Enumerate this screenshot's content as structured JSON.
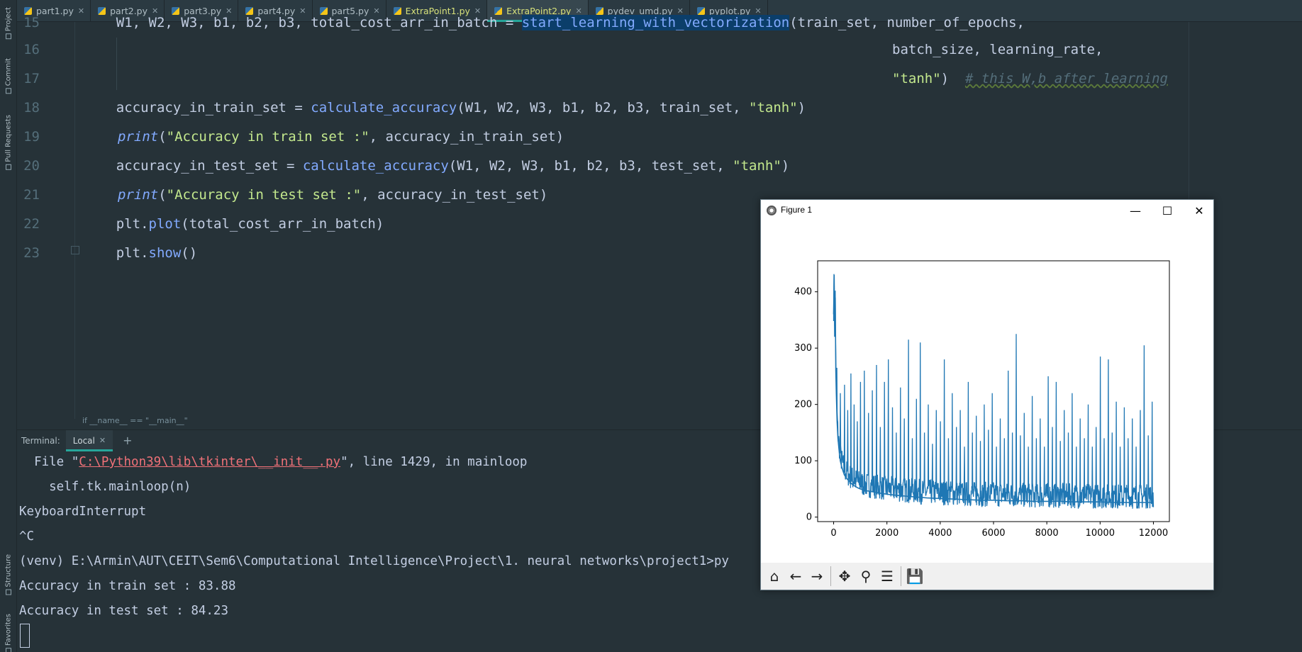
{
  "left_strip": {
    "project": "Project",
    "commit": "Commit",
    "pull_requests": "Pull Requests",
    "structure": "Structure",
    "favorites": "Favorites"
  },
  "tabs": [
    {
      "label": "part1.py",
      "modified": false,
      "active": false
    },
    {
      "label": "part2.py",
      "modified": false,
      "active": false
    },
    {
      "label": "part3.py",
      "modified": false,
      "active": false
    },
    {
      "label": "part4.py",
      "modified": false,
      "active": false
    },
    {
      "label": "part5.py",
      "modified": false,
      "active": false
    },
    {
      "label": "ExtraPoint1.py",
      "modified": true,
      "active": false
    },
    {
      "label": "ExtraPoint2.py",
      "modified": true,
      "active": true
    },
    {
      "label": "pydev_umd.py",
      "modified": false,
      "active": false
    },
    {
      "label": "pyplot.py",
      "modified": false,
      "active": false
    }
  ],
  "warning_count": "1",
  "editor": {
    "line_numbers": [
      "15",
      "16",
      "17",
      "18",
      "19",
      "20",
      "21",
      "22",
      "23"
    ],
    "line15": {
      "a": "    W1, W2, W3, b1, b2, b3, total_cost_arr_in_batch = ",
      "fn": "start_learning_with_vectorization",
      "b": "(train_set, number_of_epochs,"
    },
    "line16": "batch_size, learning_rate,",
    "line17": {
      "str": "\"tanh\"",
      "b": ")  ",
      "cmt": "# this W,b after learning"
    },
    "line18": {
      "a": "    accuracy_in_train_set = ",
      "fn": "calculate_accuracy",
      "b": "(W1, W2, W3, b1, b2, b3, train_set, ",
      "str": "\"tanh\"",
      "c": ")"
    },
    "line19": {
      "kw": "print",
      "b": "(",
      "str": "\"Accuracy in train set :\"",
      "c": ", accuracy_in_train_set)"
    },
    "line20": {
      "a": "    accuracy_in_test_set = ",
      "fn": "calculate_accuracy",
      "b": "(W1, W2, W3, b1, b2, b3, test_set, ",
      "str": "\"tanh\"",
      "c": ")"
    },
    "line21": {
      "kw": "print",
      "b": "(",
      "str": "\"Accuracy in test set :\"",
      "c": ", accuracy_in_test_set)"
    },
    "line22": {
      "a": "    plt.",
      "fn": "plot",
      "b": "(total_cost_arr_in_batch)"
    },
    "line23": {
      "a": "    plt.",
      "fn": "show",
      "b": "()"
    },
    "breadcrumb": "if __name__ == \"__main__\""
  },
  "terminal": {
    "title": "Terminal:",
    "tab_label": "Local",
    "add_label": "+",
    "line1_a": "  File \"",
    "line1_link": "C:\\Python39\\lib\\tkinter\\__init__.py",
    "line1_b": "\", line 1429, in mainloop",
    "line2": "    self.tk.mainloop(n)",
    "line3": "KeyboardInterrupt",
    "line4": "^C",
    "line5": "(venv) E:\\Armin\\AUT\\CEIT\\Sem6\\Computational Intelligence\\Project\\1. neural networks\\project1>py",
    "line6": "Accuracy in train set : 83.88",
    "line7": "Accuracy in test set : 84.23"
  },
  "figure": {
    "title": "Figure 1",
    "minimize": "—",
    "maximize": "☐",
    "close": "✕",
    "toolbar": {
      "home": "⌂",
      "back": "←",
      "forward": "→",
      "pan": "✥",
      "zoom": "⚲",
      "configure": "☰",
      "save": "💾"
    },
    "line_color": "#1f77b4"
  },
  "chart_data": {
    "type": "line",
    "title": "",
    "xlabel": "",
    "ylabel": "",
    "xlim": [
      -600,
      12600
    ],
    "ylim": [
      -8,
      455
    ],
    "xticks": [
      0,
      2000,
      4000,
      6000,
      8000,
      10000,
      12000
    ],
    "yticks": [
      0,
      100,
      200,
      300,
      400
    ],
    "series": [
      {
        "x": [
          0,
          20,
          40,
          60,
          80,
          100,
          130,
          160,
          200,
          250,
          300,
          350,
          400,
          500,
          600,
          700,
          800,
          900,
          1000,
          1200,
          1500,
          1800,
          2100,
          2500,
          3000,
          3500,
          4000,
          4500,
          5000,
          5500,
          6000,
          6500,
          7000,
          7500,
          8000,
          8500,
          9000,
          9500,
          10000,
          10500,
          11000,
          11500,
          12000
        ],
        "y": [
          360,
          430,
          320,
          390,
          260,
          220,
          170,
          140,
          120,
          100,
          90,
          82,
          75,
          68,
          63,
          58,
          55,
          52,
          50,
          47,
          45,
          42,
          40,
          38,
          36,
          34,
          33,
          32,
          31,
          30,
          30,
          29,
          29,
          28,
          28,
          28,
          27,
          27,
          27,
          26,
          26,
          26,
          26
        ]
      }
    ],
    "spikes": [
      [
        120,
        265
      ],
      [
        250,
        220
      ],
      [
        400,
        235
      ],
      [
        520,
        190
      ],
      [
        640,
        255
      ],
      [
        760,
        200
      ],
      [
        880,
        170
      ],
      [
        1000,
        240
      ],
      [
        1150,
        260
      ],
      [
        1300,
        185
      ],
      [
        1450,
        225
      ],
      [
        1600,
        270
      ],
      [
        1750,
        160
      ],
      [
        1900,
        240
      ],
      [
        2050,
        280
      ],
      [
        2200,
        195
      ],
      [
        2350,
        150
      ],
      [
        2500,
        230
      ],
      [
        2650,
        175
      ],
      [
        2800,
        315
      ],
      [
        2950,
        140
      ],
      [
        3100,
        210
      ],
      [
        3250,
        310
      ],
      [
        3400,
        150
      ],
      [
        3550,
        200
      ],
      [
        3700,
        130
      ],
      [
        3850,
        190
      ],
      [
        4000,
        170
      ],
      [
        4150,
        280
      ],
      [
        4300,
        140
      ],
      [
        4450,
        220
      ],
      [
        4600,
        160
      ],
      [
        4750,
        190
      ],
      [
        4900,
        125
      ],
      [
        5050,
        240
      ],
      [
        5200,
        150
      ],
      [
        5350,
        180
      ],
      [
        5500,
        135
      ],
      [
        5650,
        200
      ],
      [
        5800,
        155
      ],
      [
        5950,
        220
      ],
      [
        6100,
        125
      ],
      [
        6250,
        175
      ],
      [
        6400,
        140
      ],
      [
        6550,
        260
      ],
      [
        6700,
        150
      ],
      [
        6850,
        325
      ],
      [
        7000,
        145
      ],
      [
        7150,
        185
      ],
      [
        7300,
        125
      ],
      [
        7450,
        215
      ],
      [
        7600,
        140
      ],
      [
        7750,
        175
      ],
      [
        7900,
        125
      ],
      [
        8050,
        250
      ],
      [
        8200,
        160
      ],
      [
        8350,
        240
      ],
      [
        8500,
        135
      ],
      [
        8650,
        190
      ],
      [
        8800,
        150
      ],
      [
        8950,
        220
      ],
      [
        9100,
        125
      ],
      [
        9250,
        175
      ],
      [
        9400,
        140
      ],
      [
        9550,
        200
      ],
      [
        9700,
        125
      ],
      [
        9850,
        160
      ],
      [
        10000,
        285
      ],
      [
        10150,
        140
      ],
      [
        10300,
        280
      ],
      [
        10450,
        150
      ],
      [
        10600,
        205
      ],
      [
        10750,
        125
      ],
      [
        10900,
        195
      ],
      [
        11050,
        140
      ],
      [
        11200,
        175
      ],
      [
        11350,
        125
      ],
      [
        11500,
        190
      ],
      [
        11650,
        305
      ],
      [
        11800,
        145
      ],
      [
        11950,
        205
      ]
    ]
  }
}
